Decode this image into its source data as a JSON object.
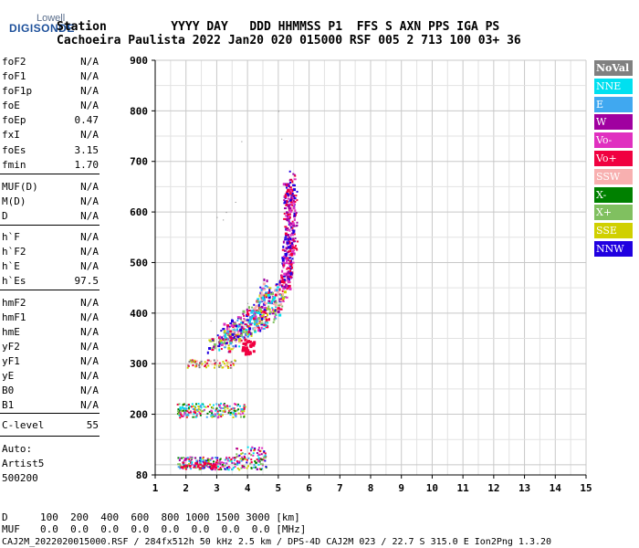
{
  "logo": {
    "top": "Lowell",
    "main": "DIGISONDE"
  },
  "header": {
    "line1": "Station         YYYY DAY   DDD HHMMSS P1  FFS S AXN PPS IGA PS",
    "line2": "Cachoeira Paulista 2022 Jan20 020 015000 RSF 005 2 713 100 03+ 36"
  },
  "params": [
    {
      "name": "foF2",
      "value": "N/A"
    },
    {
      "name": "foF1",
      "value": "N/A"
    },
    {
      "name": "foF1p",
      "value": "N/A"
    },
    {
      "name": "foE",
      "value": "N/A"
    },
    {
      "name": "foEp",
      "value": "0.47"
    },
    {
      "name": "fxI",
      "value": "N/A"
    },
    {
      "name": "foEs",
      "value": "3.15"
    },
    {
      "name": "fmin",
      "value": "1.70"
    },
    {
      "name": "MUF(D)",
      "value": "N/A"
    },
    {
      "name": "M(D)",
      "value": "N/A"
    },
    {
      "name": "D",
      "value": "N/A"
    },
    {
      "name": "h`F",
      "value": "N/A"
    },
    {
      "name": "h`F2",
      "value": "N/A"
    },
    {
      "name": "h`E",
      "value": "N/A"
    },
    {
      "name": "h`Es",
      "value": "97.5"
    },
    {
      "name": "hmF2",
      "value": "N/A"
    },
    {
      "name": "hmF1",
      "value": "N/A"
    },
    {
      "name": "hmE",
      "value": "N/A"
    },
    {
      "name": "yF2",
      "value": "N/A"
    },
    {
      "name": "yF1",
      "value": "N/A"
    },
    {
      "name": "yE",
      "value": "N/A"
    },
    {
      "name": "B0",
      "value": "N/A"
    },
    {
      "name": "B1",
      "value": "N/A"
    },
    {
      "name": "C-level",
      "value": "55"
    }
  ],
  "auto": {
    "line1": "Auto:",
    "line2": "Artist5",
    "line3": "500200"
  },
  "footer": {
    "d_label": "D",
    "d_values": "100  200  400  600  800 1000 1500 3000 [km]",
    "muf_label": "MUF",
    "muf_values": "0.0  0.0  0.0  0.0  0.0  0.0  0.0  0.0 [MHz]",
    "file_line": "CAJ2M_2022020015000.RSF / 284fx512h 50 kHz 2.5 km / DPS-4D CAJ2M 023 / 22.7 S 315.0 E Ion2Png 1.3.20"
  },
  "legend": [
    {
      "label": "NoVal",
      "color": "#808080"
    },
    {
      "label": "NNE",
      "color": "#00e0f0"
    },
    {
      "label": "E",
      "color": "#40a8f0"
    },
    {
      "label": "W",
      "color": "#a000a0"
    },
    {
      "label": "Vo-",
      "color": "#e030c0"
    },
    {
      "label": "Vo+",
      "color": "#f00040"
    },
    {
      "label": "SSW",
      "color": "#f8b0b0"
    },
    {
      "label": "X-",
      "color": "#008000"
    },
    {
      "label": "X+",
      "color": "#80c060"
    },
    {
      "label": "SSE",
      "color": "#d0d000"
    },
    {
      "label": "NNW",
      "color": "#2000e0"
    }
  ],
  "chart_data": {
    "type": "scatter",
    "xlim": [
      1,
      15
    ],
    "ylim": [
      80,
      900
    ],
    "x_ticks": [
      "1",
      "2",
      "3",
      "4",
      "5",
      "6",
      "7",
      "8",
      "9",
      "10",
      "11",
      "12",
      "13",
      "14",
      "15"
    ],
    "y_ticks": [
      "80",
      "200",
      "300",
      "400",
      "500",
      "600",
      "700",
      "800",
      "900"
    ],
    "grid": true,
    "traces": [
      {
        "name": "F-layer trace",
        "points": [
          [
            3.5,
            330
          ],
          [
            3.8,
            345
          ],
          [
            4.1,
            360
          ],
          [
            4.4,
            372
          ],
          [
            4.7,
            385
          ],
          [
            5.0,
            400
          ],
          [
            5.2,
            420
          ],
          [
            5.35,
            450
          ],
          [
            5.45,
            490
          ],
          [
            5.5,
            540
          ],
          [
            5.52,
            600
          ],
          [
            5.5,
            660
          ]
        ]
      },
      {
        "name": "Es 2nd hop",
        "points": [
          [
            1.7,
            200
          ],
          [
            2.2,
            205
          ],
          [
            2.6,
            207
          ],
          [
            3.0,
            208
          ],
          [
            3.4,
            210
          ],
          [
            3.8,
            212
          ]
        ]
      },
      {
        "name": "Es",
        "points": [
          [
            1.7,
            100
          ],
          [
            2.2,
            102
          ],
          [
            2.6,
            104
          ],
          [
            3.0,
            108
          ],
          [
            3.5,
            112
          ],
          [
            4.0,
            115
          ],
          [
            4.5,
            118
          ]
        ]
      },
      {
        "name": "F low trace",
        "points": [
          [
            2.0,
            298
          ],
          [
            2.5,
            300
          ],
          [
            3.0,
            305
          ],
          [
            3.3,
            310
          ]
        ]
      }
    ]
  }
}
